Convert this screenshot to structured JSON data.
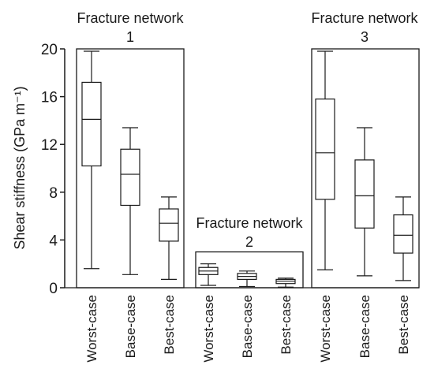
{
  "chart_data": {
    "type": "box",
    "ylabel": "Shear stiffness (GPa m⁻¹)",
    "ylim": [
      0,
      20
    ],
    "yticks": [
      0,
      4,
      8,
      12,
      16,
      20
    ],
    "grid": false,
    "groups": [
      {
        "title_line1": "Fracture network",
        "title_line2": "1",
        "boxes": [
          {
            "category": "Worst-case",
            "min": 1.6,
            "q1": 10.2,
            "median": 14.1,
            "q3": 17.2,
            "max": 19.8
          },
          {
            "category": "Base-case",
            "min": 1.1,
            "q1": 6.9,
            "median": 9.5,
            "q3": 11.6,
            "max": 13.4
          },
          {
            "category": "Best-case",
            "min": 0.7,
            "q1": 3.9,
            "median": 5.4,
            "q3": 6.6,
            "max": 7.6
          }
        ]
      },
      {
        "title_line1": "Fracture network",
        "title_line2": "2",
        "boxes": [
          {
            "category": "Worst-case",
            "min": 0.2,
            "q1": 1.1,
            "median": 1.4,
            "q3": 1.7,
            "max": 2.0
          },
          {
            "category": "Base-case",
            "min": 0.1,
            "q1": 0.7,
            "median": 0.95,
            "q3": 1.2,
            "max": 1.4
          },
          {
            "category": "Best-case",
            "min": 0.05,
            "q1": 0.35,
            "median": 0.55,
            "q3": 0.7,
            "max": 0.8
          }
        ]
      },
      {
        "title_line1": "Fracture network",
        "title_line2": "3",
        "boxes": [
          {
            "category": "Worst-case",
            "min": 1.5,
            "q1": 7.4,
            "median": 11.3,
            "q3": 15.8,
            "max": 19.8
          },
          {
            "category": "Base-case",
            "min": 1.0,
            "q1": 5.0,
            "median": 7.7,
            "q3": 10.7,
            "max": 13.4
          },
          {
            "category": "Best-case",
            "min": 0.6,
            "q1": 2.9,
            "median": 4.4,
            "q3": 6.1,
            "max": 7.6
          }
        ]
      }
    ],
    "group_frame_tops": [
      20,
      3,
      20
    ]
  }
}
